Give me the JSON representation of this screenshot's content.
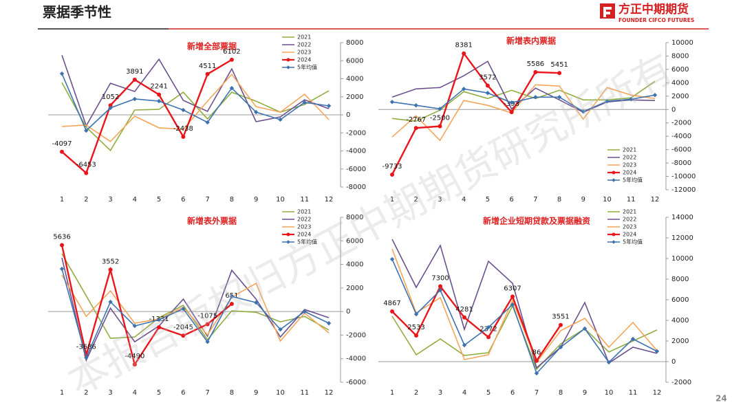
{
  "header": {
    "title": "票据季节性"
  },
  "logo": {
    "name": "方正中期期货",
    "english": "FOUNDER CIFCO FUTURES"
  },
  "page_number": "24",
  "watermark": "本报告版权归方正中期期货研究所所有",
  "chart_data": [
    {
      "type": "line",
      "title": "新增全部票据",
      "legend": "upper right",
      "categories": [
        "1",
        "2",
        "3",
        "4",
        "5",
        "6",
        "7",
        "8",
        "9",
        "10",
        "11",
        "12"
      ],
      "ylim": [
        -8000,
        8000
      ],
      "yticks": [
        -8000,
        -6000,
        -4000,
        -2000,
        0,
        2000,
        4000,
        6000,
        8000
      ],
      "series": [
        {
          "name": "2021",
          "color": "#8fad3f",
          "values": [
            3570,
            -1370,
            -3950,
            530,
            600,
            2500,
            -460,
            2500,
            1520,
            300,
            1140,
            2660
          ]
        },
        {
          "name": "2022",
          "color": "#6b4f8f",
          "values": [
            6610,
            -1220,
            3500,
            2580,
            6160,
            1600,
            380,
            5090,
            -760,
            -230,
            1670,
            680
          ]
        },
        {
          "name": "2023",
          "color": "#f5a55a",
          "values": [
            -1290,
            -1140,
            -2960,
            -150,
            -1440,
            -1600,
            1520,
            4480,
            910,
            300,
            2280,
            -530
          ]
        },
        {
          "name": "2024",
          "color": "#e8161b",
          "values": [
            -4097,
            -6453,
            1052,
            3891,
            2241,
            -2438,
            4511,
            6102,
            null,
            null,
            null,
            null
          ]
        },
        {
          "name": "5年均值",
          "color": "#3d72b0",
          "values": [
            4560,
            -1750,
            760,
            1750,
            1520,
            530,
            -840,
            2960,
            300,
            -530,
            1370,
            990
          ]
        }
      ]
    },
    {
      "type": "line",
      "title": "新增表内票据",
      "legend": "lower right",
      "categories": [
        "1",
        "2",
        "3",
        "4",
        "5",
        "6",
        "7",
        "8",
        "9",
        "10",
        "11",
        "12"
      ],
      "ylim": [
        -12000,
        10000
      ],
      "yticks": [
        -12000,
        -10000,
        -8000,
        -6000,
        -4000,
        -2000,
        0,
        2000,
        4000,
        6000,
        8000,
        10000
      ],
      "series": [
        {
          "name": "2021",
          "color": "#8fad3f",
          "values": [
            -1340,
            -1750,
            -100,
            2670,
            1640,
            2880,
            1640,
            2880,
            1440,
            1440,
            1750,
            4210
          ]
        },
        {
          "name": "2022",
          "color": "#6b4f8f",
          "values": [
            1850,
            3080,
            3290,
            5040,
            7200,
            100,
            3190,
            1440,
            -410,
            1130,
            1440,
            1340
          ]
        },
        {
          "name": "2023",
          "color": "#f5a55a",
          "values": [
            -4110,
            -930,
            -4630,
            1340,
            620,
            -510,
            3700,
            3500,
            -1440,
            3290,
            2160,
            1640
          ]
        },
        {
          "name": "2024",
          "color": "#e8161b",
          "values": [
            -9733,
            -2767,
            -2500,
            8381,
            3572,
            -393,
            5586,
            5451,
            null,
            null,
            null,
            null
          ]
        },
        {
          "name": "5年均值",
          "color": "#3d72b0",
          "values": [
            1130,
            620,
            100,
            3080,
            2470,
            1030,
            1850,
            1850,
            -310,
            1230,
            1540,
            2160
          ]
        }
      ]
    },
    {
      "type": "line",
      "title": "新增表外票据",
      "legend": "upper right",
      "categories": [
        "1",
        "2",
        "3",
        "4",
        "5",
        "6",
        "7",
        "8",
        "9",
        "10",
        "11",
        "12"
      ],
      "ylim": [
        -6000,
        8000
      ],
      "yticks": [
        -6000,
        -4000,
        -2000,
        0,
        2000,
        4000,
        6000,
        8000
      ],
      "series": [
        {
          "name": "2021",
          "color": "#8fad3f",
          "values": [
            4900,
            1340,
            -2270,
            -2160,
            -520,
            520,
            -2390,
            60,
            -60,
            -870,
            -410,
            -1570
          ]
        },
        {
          "name": "2022",
          "color": "#6b4f8f",
          "values": [
            4550,
            -4140,
            290,
            -2570,
            -1220,
            1050,
            -2100,
            3500,
            1050,
            -2160,
            170,
            -520
          ]
        },
        {
          "name": "2023",
          "color": "#f5a55a",
          "values": [
            3090,
            -410,
            1750,
            -990,
            -640,
            350,
            -1980,
            1220,
            2390,
            -2510,
            -120,
            -1810
          ]
        },
        {
          "name": "2024",
          "color": "#e8161b",
          "values": [
            5636,
            -3686,
            3552,
            -4490,
            -1331,
            -2045,
            -1075,
            651,
            null,
            null,
            null,
            null
          ]
        },
        {
          "name": "5年均值",
          "color": "#3d72b0",
          "values": [
            3620,
            -3910,
            820,
            -1220,
            -700,
            230,
            -2570,
            1280,
            760,
            -1520,
            0,
            -990
          ]
        }
      ]
    },
    {
      "type": "line",
      "title": "新增企业短期贷款及票据融资",
      "legend": "upper right",
      "categories": [
        "1",
        "2",
        "3",
        "4",
        "5",
        "6",
        "7",
        "8",
        "9",
        "10",
        "11",
        "12"
      ],
      "ylim": [
        -2000,
        14000
      ],
      "yticks": [
        -2000,
        0,
        2000,
        4000,
        6000,
        8000,
        10000,
        12000,
        14000
      ],
      "series": [
        {
          "name": "2021",
          "color": "#8fad3f",
          "values": [
            4400,
            670,
            2200,
            600,
            870,
            5400,
            -730,
            1730,
            3200,
            930,
            2000,
            3070
          ]
        },
        {
          "name": "2022",
          "color": "#6b4f8f",
          "values": [
            11870,
            7200,
            11270,
            3130,
            9730,
            7600,
            -600,
            1400,
            5730,
            -130,
            1400,
            800
          ]
        },
        {
          "name": "2023",
          "color": "#f5a55a",
          "values": [
            10930,
            4730,
            6200,
            200,
            670,
            5930,
            -70,
            3000,
            4200,
            1400,
            3800,
            1070
          ]
        },
        {
          "name": "2024",
          "color": "#e8161b",
          "values": [
            4867,
            2533,
            7300,
            4281,
            2372,
            6307,
            86,
            3551,
            null,
            null,
            null,
            null
          ]
        },
        {
          "name": "5年均值",
          "color": "#3d72b0",
          "values": [
            9930,
            4600,
            6930,
            1600,
            3330,
            5530,
            -1130,
            1400,
            3200,
            -70,
            2200,
            1000
          ]
        }
      ]
    }
  ]
}
